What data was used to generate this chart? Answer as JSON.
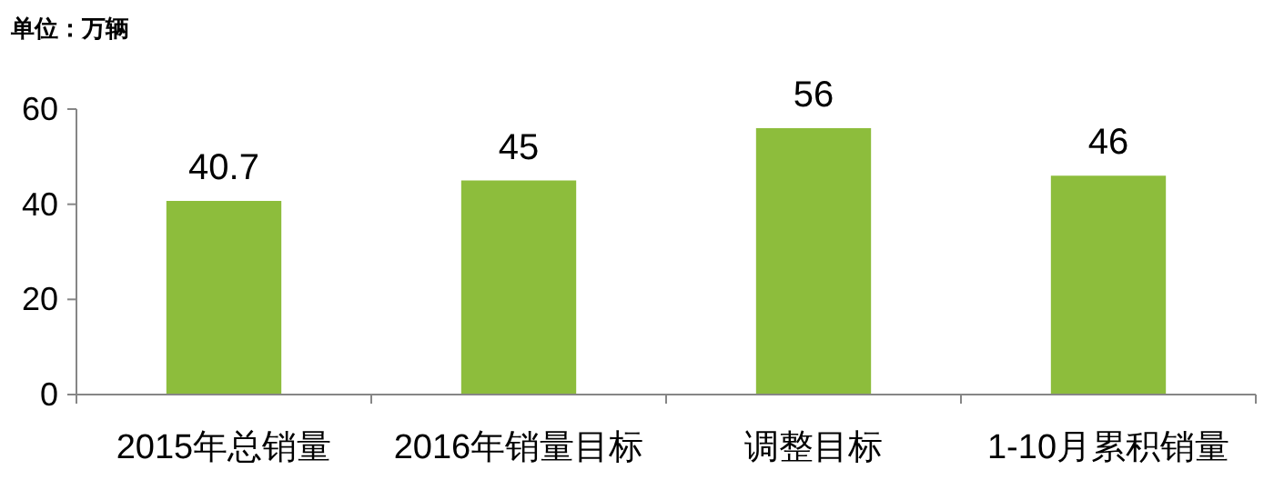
{
  "chart_data": {
    "type": "bar",
    "annotations": [
      "单位：万辆"
    ],
    "categories": [
      "2015年总销量",
      "2016年销量目标",
      "调整目标",
      "1-10月累积销量"
    ],
    "values": [
      40.7,
      45,
      56,
      46
    ],
    "color": "#8dbd3c",
    "ylim": [
      0,
      60
    ],
    "yticks": [
      0,
      20,
      40,
      60
    ],
    "data_labels": true,
    "grid": false
  }
}
